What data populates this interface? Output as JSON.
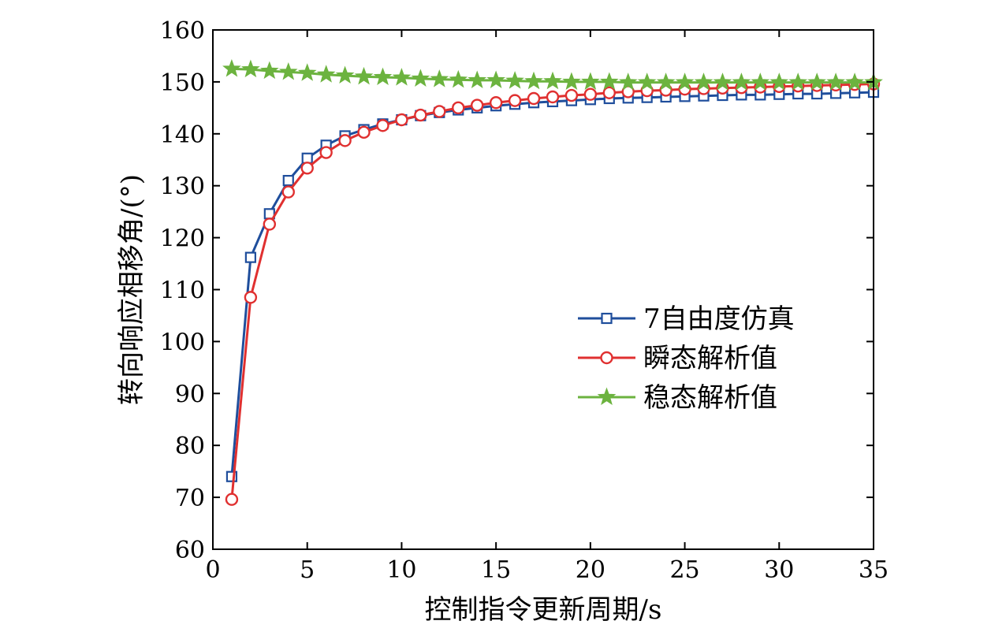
{
  "chart_data": {
    "type": "line",
    "title": "",
    "xlabel": "控制指令更新周期/s",
    "ylabel": "转向响应相移角/(°)",
    "xlim": [
      0,
      35
    ],
    "ylim": [
      60,
      160
    ],
    "xticks": [
      0,
      5,
      10,
      15,
      20,
      25,
      30,
      35
    ],
    "yticks": [
      60,
      70,
      80,
      90,
      100,
      110,
      120,
      130,
      140,
      150,
      160
    ],
    "grid": false,
    "legend_position": "center-right",
    "x": [
      1,
      2,
      3,
      4,
      5,
      6,
      7,
      8,
      9,
      10,
      11,
      12,
      13,
      14,
      15,
      16,
      17,
      18,
      19,
      20,
      21,
      22,
      23,
      24,
      25,
      26,
      27,
      28,
      29,
      30,
      31,
      32,
      33,
      34,
      35
    ],
    "series": [
      {
        "name": "7自由度仿真",
        "color": "#1f4e9c",
        "marker": "square",
        "values": [
          74.0,
          116.2,
          124.6,
          131.0,
          135.3,
          137.8,
          139.6,
          140.8,
          141.9,
          142.7,
          143.5,
          144.1,
          144.6,
          145.0,
          145.4,
          145.7,
          146.0,
          146.2,
          146.4,
          146.6,
          146.8,
          146.9,
          147.0,
          147.1,
          147.2,
          147.3,
          147.4,
          147.5,
          147.5,
          147.6,
          147.7,
          147.7,
          147.8,
          147.9,
          148.0
        ]
      },
      {
        "name": "瞬态解析值",
        "color": "#e03030",
        "marker": "circle",
        "values": [
          69.6,
          108.5,
          122.6,
          128.8,
          133.4,
          136.4,
          138.7,
          140.3,
          141.6,
          142.7,
          143.6,
          144.3,
          145.0,
          145.5,
          146.0,
          146.4,
          146.8,
          147.1,
          147.4,
          147.6,
          147.9,
          148.1,
          148.3,
          148.4,
          148.6,
          148.7,
          148.8,
          148.9,
          149.0,
          149.1,
          149.2,
          149.3,
          149.4,
          149.5,
          149.6
        ]
      },
      {
        "name": "稳态解析值",
        "color": "#6cb33f",
        "marker": "star",
        "values": [
          152.5,
          152.4,
          152.1,
          151.9,
          151.7,
          151.4,
          151.2,
          151.0,
          150.9,
          150.8,
          150.6,
          150.5,
          150.4,
          150.3,
          150.3,
          150.2,
          150.1,
          150.1,
          150.0,
          150.0,
          150.0,
          149.9,
          149.9,
          149.9,
          149.9,
          149.9,
          149.9,
          149.9,
          149.9,
          149.9,
          149.9,
          149.9,
          149.9,
          149.9,
          149.9
        ]
      }
    ]
  }
}
